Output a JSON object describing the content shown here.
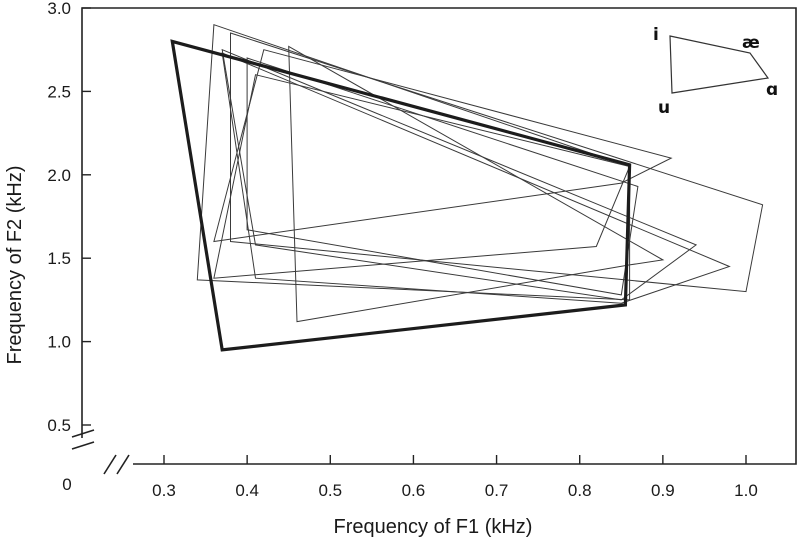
{
  "chart_data": {
    "type": "line",
    "title": "",
    "xlabel": "Frequency of F1 (kHz)",
    "ylabel": "Frequency of F2 (kHz)",
    "xlim": [
      0.21,
      1.04
    ],
    "ylim": [
      0.44,
      3.0
    ],
    "x_ticks": [
      "0.3",
      "0.4",
      "0.5",
      "0.6",
      "0.7",
      "0.8",
      "0.9",
      "1.0"
    ],
    "y_ticks": [
      "0.5",
      "1.0",
      "1.5",
      "2.0",
      "2.5",
      "3.0"
    ],
    "origin_label": "0",
    "axis_breaks": true,
    "grid": false,
    "vowel_order": [
      "i",
      "æ",
      "ɑ",
      "u"
    ],
    "series": [
      {
        "emphasis": "bold",
        "points": [
          [
            0.31,
            2.8
          ],
          [
            0.86,
            2.06
          ],
          [
            0.855,
            1.22
          ],
          [
            0.37,
            0.95
          ]
        ]
      },
      {
        "emphasis": "thin",
        "points": [
          [
            0.42,
            2.75
          ],
          [
            0.91,
            2.1
          ],
          [
            0.85,
            1.95
          ],
          [
            0.36,
            1.6
          ]
        ]
      },
      {
        "emphasis": "thin",
        "points": [
          [
            0.38,
            2.85
          ],
          [
            1.02,
            1.82
          ],
          [
            1.0,
            1.3
          ],
          [
            0.38,
            1.6
          ]
        ]
      },
      {
        "emphasis": "thin",
        "points": [
          [
            0.37,
            2.75
          ],
          [
            0.94,
            1.58
          ],
          [
            0.85,
            1.25
          ],
          [
            0.41,
            1.58
          ]
        ]
      },
      {
        "emphasis": "thin",
        "points": [
          [
            0.36,
            2.9
          ],
          [
            0.86,
            2.05
          ],
          [
            0.86,
            1.25
          ],
          [
            0.34,
            1.37
          ]
        ]
      },
      {
        "emphasis": "thin",
        "points": [
          [
            0.4,
            2.7
          ],
          [
            0.87,
            1.93
          ],
          [
            0.85,
            1.28
          ],
          [
            0.4,
            1.67
          ]
        ]
      },
      {
        "emphasis": "thin",
        "points": [
          [
            0.37,
            2.73
          ],
          [
            0.98,
            1.45
          ],
          [
            0.85,
            1.23
          ],
          [
            0.41,
            1.38
          ]
        ]
      },
      {
        "emphasis": "thin",
        "points": [
          [
            0.45,
            2.77
          ],
          [
            0.9,
            1.49
          ],
          [
            0.86,
            1.46
          ],
          [
            0.46,
            1.12
          ]
        ]
      },
      {
        "emphasis": "thin",
        "points": [
          [
            0.41,
            2.6
          ],
          [
            0.86,
            2.05
          ],
          [
            0.82,
            1.57
          ],
          [
            0.36,
            1.38
          ]
        ]
      }
    ],
    "inset": {
      "labels": {
        "i": "i",
        "ae": "æ",
        "a": "ɑ",
        "u": "u"
      }
    }
  }
}
